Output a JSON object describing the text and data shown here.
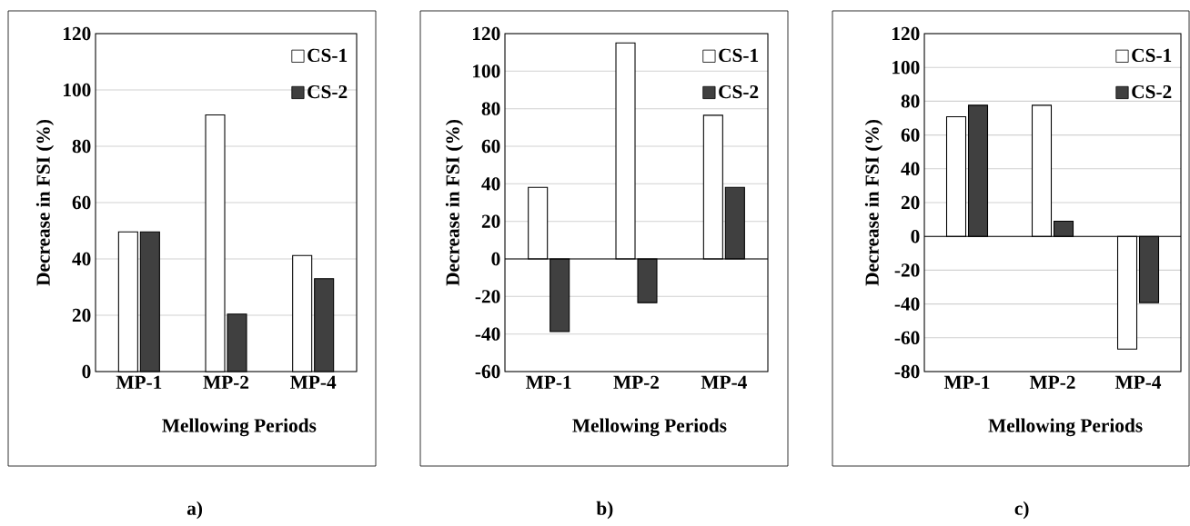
{
  "chart_data": [
    {
      "type": "bar",
      "categories": [
        "MP-1",
        "MP-2",
        "MP-4"
      ],
      "xlabel": "Mellowing Periods",
      "ylabel": "Decrease in FSI (%)",
      "series": [
        {
          "name": "CS-1",
          "color": "#ffffff",
          "values": [
            49.6,
            91.1,
            41.2
          ]
        },
        {
          "name": "CS-2",
          "color": "#404040",
          "values": [
            49.6,
            20.4,
            33.0
          ]
        }
      ],
      "ylim": [
        0,
        120
      ],
      "yticks": [
        0,
        20,
        40,
        60,
        80,
        100,
        120
      ],
      "grid": "y",
      "legend": "top right",
      "annotations": [
        "a)"
      ]
    },
    {
      "type": "bar",
      "categories": [
        "MP-1",
        "MP-2",
        "MP-4"
      ],
      "xlabel": "Mellowing Periods",
      "ylabel": "Decrease in FSI (%)",
      "series": [
        {
          "name": "CS-1",
          "color": "#ffffff",
          "values": [
            38.1,
            115.0,
            76.5
          ]
        },
        {
          "name": "CS-2",
          "color": "#404040",
          "values": [
            -38.7,
            -23.3,
            38.1
          ]
        }
      ],
      "ylim": [
        -60,
        120
      ],
      "yticks": [
        -60,
        -40,
        -20,
        0,
        20,
        40,
        60,
        80,
        100,
        120
      ],
      "grid": "y",
      "legend": "top right",
      "annotations": [
        "b)"
      ]
    },
    {
      "type": "bar",
      "categories": [
        "MP-1",
        "MP-2",
        "MP-4"
      ],
      "xlabel": "Mellowing Periods",
      "ylabel": "Decrease in FSI (%)",
      "series": [
        {
          "name": "CS-1",
          "color": "#ffffff",
          "values": [
            70.8,
            77.6,
            -66.7
          ]
        },
        {
          "name": "CS-2",
          "color": "#404040",
          "values": [
            77.6,
            9.0,
            -39.2
          ]
        }
      ],
      "ylim": [
        -80,
        120
      ],
      "yticks": [
        -80,
        -60,
        -40,
        -20,
        0,
        20,
        40,
        60,
        80,
        100,
        120
      ],
      "grid": "y",
      "legend": "top right",
      "annotations": [
        "c)"
      ]
    }
  ]
}
